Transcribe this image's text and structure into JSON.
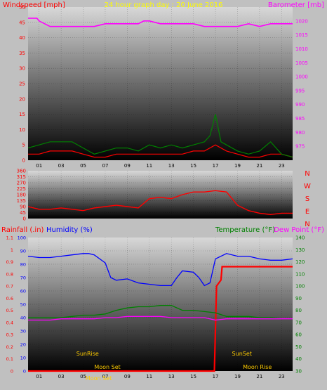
{
  "colors": {
    "background": "#c0c0c0",
    "windspeed": "#ff0000",
    "gust": "#008000",
    "barometer": "#ff00ff",
    "title": "#ffff00",
    "humidity": "#0000ff",
    "rainfall": "#ff0000",
    "temperature": "#008000",
    "dewpoint": "#ff00ff",
    "direction": "#ff0000",
    "sun": "#ffcc00"
  },
  "chart_data": [
    {
      "type": "line",
      "title": "24 hour graph day : 20 June 2016",
      "ylabel_left": "Windspeed [mph]",
      "ylabel_right": "Barometer [mb]",
      "xlim": [
        0,
        24
      ],
      "ylim_left": [
        0,
        50
      ],
      "ylim_right": [
        970,
        1025
      ],
      "x_ticks": [
        "01",
        "03",
        "05",
        "07",
        "09",
        "11",
        "13",
        "15",
        "17",
        "19",
        "21",
        "23"
      ],
      "y_ticks_left": [
        "0",
        "5",
        "10",
        "15",
        "20",
        "25",
        "30",
        "35",
        "40",
        "45",
        "50"
      ],
      "y_ticks_right": [
        "975",
        "980",
        "985",
        "990",
        "995",
        "1000",
        "1005",
        "1010",
        "1015",
        "1020"
      ],
      "grid": true,
      "series": [
        {
          "key": "barometer",
          "axis": "right",
          "x": [
            0,
            0.8,
            1,
            2,
            4,
            6,
            7,
            8,
            9,
            10,
            10.5,
            11,
            12,
            13,
            14,
            15,
            16,
            17,
            18,
            19,
            20,
            21,
            22,
            23,
            24
          ],
          "values": [
            1021,
            1021,
            1020,
            1018,
            1018,
            1018,
            1019,
            1019,
            1019,
            1019,
            1020,
            1020,
            1019,
            1019,
            1019,
            1019,
            1018,
            1018,
            1018,
            1018,
            1019,
            1018,
            1019,
            1019,
            1019
          ]
        },
        {
          "key": "windspeed",
          "axis": "left",
          "x": [
            0,
            1,
            2,
            3,
            4,
            5,
            6,
            7,
            8,
            9,
            10,
            11,
            12,
            13,
            14,
            15,
            16,
            17,
            18,
            19,
            20,
            21,
            22,
            23,
            24
          ],
          "values": [
            2,
            2,
            3,
            3,
            3,
            2,
            1,
            1,
            2,
            2,
            2,
            2,
            2,
            2,
            2,
            3,
            3,
            5,
            3,
            2,
            1,
            1,
            2,
            2,
            1
          ]
        },
        {
          "key": "gust",
          "axis": "left",
          "x": [
            0,
            1,
            2,
            3,
            4,
            5,
            6,
            7,
            8,
            9,
            10,
            11,
            12,
            13,
            14,
            15,
            16,
            16.5,
            17,
            17.5,
            18,
            19,
            20,
            21,
            22,
            23,
            24
          ],
          "values": [
            4,
            5,
            6,
            6,
            6,
            4,
            2,
            3,
            4,
            4,
            3,
            5,
            4,
            5,
            4,
            5,
            6,
            8,
            15,
            6,
            5,
            3,
            2,
            3,
            6,
            2,
            1
          ]
        }
      ]
    },
    {
      "type": "line",
      "title": "",
      "ylabel_right": "",
      "xlim": [
        0,
        24
      ],
      "ylim": [
        0,
        360
      ],
      "y_ticks": [
        "0",
        "45",
        "90",
        "135",
        "180",
        "225",
        "270",
        "315",
        "360"
      ],
      "compass_labels": [
        "N",
        "W",
        "S",
        "E",
        "N"
      ],
      "grid": true,
      "series": [
        {
          "key": "direction",
          "x": [
            0,
            1,
            2,
            3,
            4,
            5,
            6,
            7,
            8,
            9,
            10,
            11,
            12,
            13,
            14,
            15,
            16,
            17,
            18,
            19,
            20,
            21,
            22,
            23,
            24
          ],
          "values": [
            90,
            70,
            70,
            80,
            70,
            60,
            80,
            90,
            100,
            90,
            80,
            150,
            160,
            150,
            180,
            200,
            200,
            210,
            200,
            100,
            60,
            40,
            30,
            40,
            40
          ]
        }
      ]
    },
    {
      "type": "line",
      "title": "",
      "ylabel_left_1": "Rainfall (.in)",
      "ylabel_left_2": "Humidity (%)",
      "ylabel_right_1": "Temperature (°F)",
      "ylabel_right_2": "Dew Point (°F)",
      "xlim": [
        0,
        24
      ],
      "ylim_rain": [
        0,
        1.1
      ],
      "ylim_humidity": [
        0,
        100
      ],
      "ylim_temp": [
        30,
        140
      ],
      "y_ticks_rain": [
        "0",
        "0.1",
        "0.2",
        "0.3",
        "0.4",
        "0.5",
        "0.6",
        "0.7",
        "0.8",
        "0.9",
        "1",
        "1.1"
      ],
      "y_ticks_humidity": [
        "0",
        "10",
        "20",
        "30",
        "40",
        "50",
        "60",
        "70",
        "80",
        "90",
        "100"
      ],
      "y_ticks_temp": [
        "30",
        "40",
        "50",
        "60",
        "70",
        "80",
        "90",
        "100",
        "110",
        "120",
        "130",
        "140"
      ],
      "annotations": [
        "SunRise",
        "Moon Set",
        "Moon Set",
        "SunSet",
        "Moon Rise"
      ],
      "grid": true,
      "series": [
        {
          "key": "humidity",
          "axis": "humidity",
          "x": [
            0,
            1,
            2,
            3,
            4,
            5,
            5.5,
            6,
            7,
            7.5,
            8,
            9,
            10,
            11,
            12,
            13,
            13.5,
            14,
            15,
            15.5,
            16,
            16.5,
            17,
            18,
            19,
            20,
            21,
            22,
            23,
            24
          ],
          "values": [
            86,
            85,
            85,
            86,
            87,
            88,
            88,
            87,
            81,
            70,
            68,
            69,
            66,
            65,
            64,
            64,
            70,
            75,
            74,
            70,
            64,
            66,
            84,
            88,
            86,
            86,
            84,
            83,
            83,
            84
          ]
        },
        {
          "key": "rainfall",
          "axis": "rain",
          "x": [
            0,
            16.9,
            17.1,
            17.5,
            17.6,
            18,
            24
          ],
          "values": [
            0,
            0,
            0.7,
            0.75,
            0.86,
            0.86,
            0.86
          ]
        },
        {
          "key": "temperature",
          "axis": "temp",
          "x": [
            0,
            1,
            2,
            3,
            4,
            5,
            6,
            7,
            8,
            9,
            10,
            11,
            12,
            13,
            14,
            15,
            16,
            17,
            18,
            19,
            20,
            21,
            22,
            23,
            24
          ],
          "values": [
            74,
            74,
            74,
            74,
            75,
            76,
            76,
            77,
            80,
            82,
            83,
            83,
            84,
            84,
            80,
            80,
            79,
            78,
            75,
            75,
            75,
            74,
            74,
            73,
            73
          ]
        },
        {
          "key": "dewpoint",
          "axis": "temp",
          "x": [
            0,
            1,
            2,
            3,
            4,
            5,
            6,
            7,
            8,
            9,
            10,
            11,
            12,
            13,
            14,
            15,
            16,
            17,
            18,
            19,
            20,
            21,
            22,
            23,
            24
          ],
          "values": [
            72,
            72,
            72,
            73,
            73,
            73,
            73,
            74,
            74,
            75,
            75,
            75,
            75,
            74,
            74,
            74,
            74,
            72,
            73,
            73,
            73,
            73,
            73,
            73,
            73
          ]
        }
      ]
    }
  ]
}
